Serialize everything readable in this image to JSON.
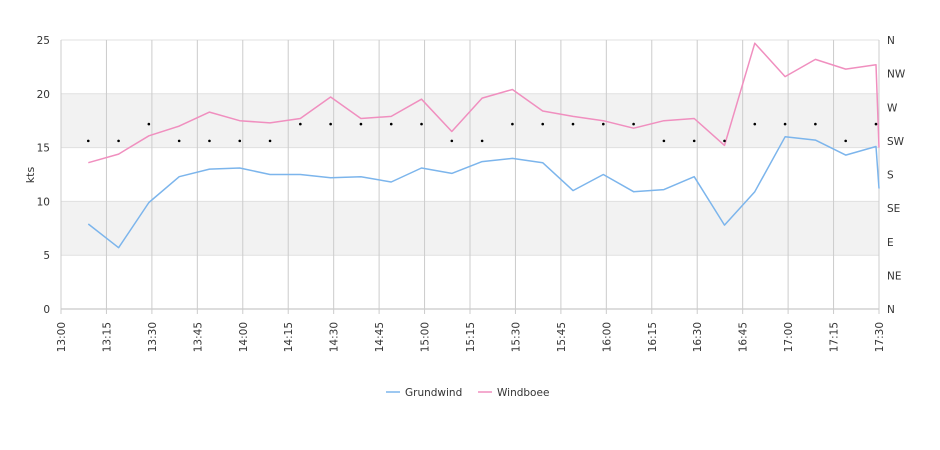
{
  "chart_data": {
    "type": "line",
    "ylabel": "kts",
    "ylim": [
      0,
      25
    ],
    "y_ticks": [
      "0",
      "5",
      "10",
      "15",
      "20",
      "25"
    ],
    "x_ticks": [
      "13:00",
      "13:15",
      "13:30",
      "13:45",
      "14:00",
      "14:15",
      "14:30",
      "14:45",
      "15:00",
      "15:15",
      "15:30",
      "15:45",
      "16:00",
      "16:15",
      "16:30",
      "16:45",
      "17:00",
      "17:15",
      "17:30"
    ],
    "x_range": [
      "13:00",
      "17:30"
    ],
    "direction_axis": {
      "position": "right",
      "labels": [
        "N",
        "NE",
        "E",
        "SE",
        "S",
        "SW",
        "W",
        "NW",
        "N"
      ]
    },
    "grid": true,
    "legend": {
      "placement": "bottom-center"
    },
    "colors": {
      "Grundwind": "#7cb5ec",
      "Windboee": "#f08fbf",
      "direction": "#000000",
      "band": "#f2f2f2",
      "grid": "#cccccc"
    },
    "x": [
      "13:09",
      "13:19",
      "13:29",
      "13:39",
      "13:49",
      "13:59",
      "14:09",
      "14:19",
      "14:29",
      "14:39",
      "14:49",
      "14:59",
      "15:09",
      "15:19",
      "15:29",
      "15:39",
      "15:49",
      "15:59",
      "16:09",
      "16:19",
      "16:29",
      "16:39",
      "16:49",
      "16:59",
      "17:09",
      "17:19",
      "17:29",
      "17:30"
    ],
    "series": [
      {
        "name": "Grundwind",
        "values": [
          7.9,
          5.7,
          9.9,
          12.3,
          13.0,
          13.1,
          12.5,
          12.5,
          12.2,
          12.3,
          11.8,
          13.1,
          12.6,
          13.7,
          14.0,
          13.6,
          11.0,
          12.5,
          10.9,
          11.1,
          12.3,
          7.8,
          10.9,
          16.0,
          15.7,
          14.3,
          15.1,
          11.2
        ]
      },
      {
        "name": "Windboee",
        "values": [
          13.6,
          14.4,
          16.1,
          17.0,
          18.3,
          17.5,
          17.3,
          17.7,
          19.7,
          17.7,
          17.9,
          19.5,
          16.5,
          19.6,
          20.4,
          18.4,
          17.9,
          17.5,
          16.8,
          17.5,
          17.7,
          15.2,
          24.7,
          21.6,
          23.2,
          22.3,
          22.7,
          15.0
        ]
      }
    ],
    "direction": {
      "x": [
        "13:09",
        "13:19",
        "13:29",
        "13:39",
        "13:49",
        "13:59",
        "14:09",
        "14:19",
        "14:29",
        "14:39",
        "14:49",
        "14:59",
        "15:09",
        "15:19",
        "15:29",
        "15:39",
        "15:49",
        "15:59",
        "16:09",
        "16:19",
        "16:29",
        "16:39",
        "16:49",
        "16:59",
        "17:09",
        "17:19",
        "17:29"
      ],
      "values": [
        "SW",
        "SW",
        "WSW",
        "SW",
        "SW",
        "SW",
        "SW",
        "WSW",
        "WSW",
        "WSW",
        "WSW",
        "WSW",
        "SW",
        "SW",
        "WSW",
        "WSW",
        "WSW",
        "WSW",
        "WSW",
        "SW",
        "SW",
        "SW",
        "WSW",
        "WSW",
        "WSW",
        "SW",
        "WSW"
      ]
    }
  }
}
